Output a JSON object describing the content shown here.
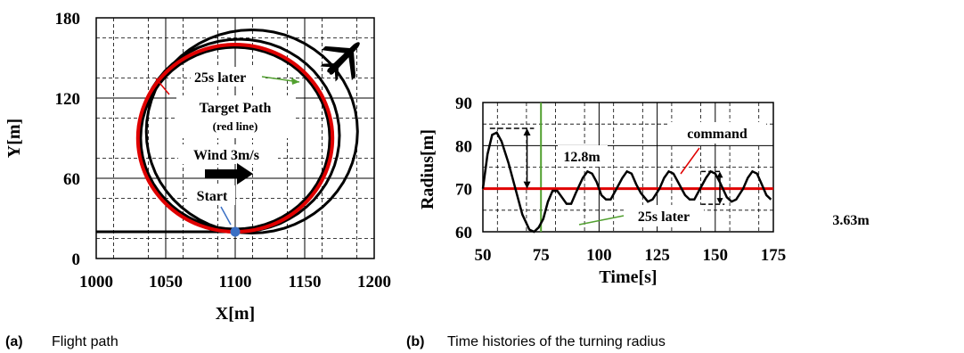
{
  "colors": {
    "target": "#e00000",
    "flight": "#000000",
    "marker": "#ff0000",
    "start_dot": "#3a6fc4",
    "annotation_line": "#52a030"
  },
  "captions": {
    "a_label": "(a)",
    "a_text": "Flight path",
    "b_label": "(b)",
    "b_text": "Time histories of the turning radius"
  },
  "chart_data": [
    {
      "type": "line",
      "xlabel": "X[m]",
      "ylabel": "Y[m]",
      "xlim": [
        1000,
        1200
      ],
      "ylim": [
        0,
        180
      ],
      "xticks": [
        "1000",
        "1050",
        "1100",
        "1150",
        "1200"
      ],
      "yticks": [
        "0",
        "60",
        "120",
        "180"
      ],
      "grid": true,
      "target_path": {
        "center": [
          1100,
          90
        ],
        "radius": 70
      },
      "flight_path": {
        "entry_from": [
          1000,
          20
        ],
        "start": [
          1100,
          20
        ],
        "loop_centers": [
          [
            1100,
            90
          ],
          [
            1103,
            92
          ],
          [
            1112,
            95
          ]
        ],
        "loop_radii": [
          68,
          72,
          76
        ]
      },
      "annotations": {
        "later": "25s later",
        "target": "Target Path",
        "target_sub": "(red line)",
        "wind": "Wind 3m/s",
        "start": "Start"
      },
      "icon": "airplane-icon"
    },
    {
      "type": "line",
      "xlabel": "Time[s]",
      "ylabel": "Radius[m]",
      "xlim": [
        50,
        175
      ],
      "ylim": [
        60,
        90
      ],
      "xticks": [
        "50",
        "75",
        "100",
        "125",
        "150",
        "175"
      ],
      "yticks": [
        "60",
        "70",
        "80",
        "90"
      ],
      "grid": true,
      "command": 70,
      "series_points": [
        [
          50,
          70
        ],
        [
          52,
          78
        ],
        [
          54,
          82.5
        ],
        [
          56,
          83
        ],
        [
          58,
          81
        ],
        [
          61,
          76
        ],
        [
          64,
          70
        ],
        [
          67,
          64
        ],
        [
          70,
          60.5
        ],
        [
          72,
          60
        ],
        [
          74,
          61
        ],
        [
          76,
          63
        ],
        [
          78,
          67
        ],
        [
          80,
          69.5
        ],
        [
          82,
          69.5
        ],
        [
          84,
          68
        ],
        [
          86,
          66.5
        ],
        [
          88,
          66.5
        ],
        [
          90,
          69
        ],
        [
          93,
          72.5
        ],
        [
          95,
          74
        ],
        [
          97,
          73.5
        ],
        [
          99,
          71.5
        ],
        [
          101,
          68.5
        ],
        [
          103,
          67.5
        ],
        [
          105,
          67.5
        ],
        [
          107,
          69.5
        ],
        [
          110,
          72.5
        ],
        [
          112,
          74
        ],
        [
          114,
          73.5
        ],
        [
          116,
          71
        ],
        [
          118,
          69
        ],
        [
          121,
          67
        ],
        [
          123,
          67.5
        ],
        [
          126,
          70
        ],
        [
          128,
          72.5
        ],
        [
          130,
          74
        ],
        [
          132,
          73.5
        ],
        [
          134,
          71.5
        ],
        [
          137,
          68.5
        ],
        [
          139,
          67.5
        ],
        [
          141,
          67.5
        ],
        [
          143,
          69.5
        ],
        [
          146,
          72.5
        ],
        [
          148,
          74
        ],
        [
          150,
          73.5
        ],
        [
          152,
          71.5
        ],
        [
          155,
          68
        ],
        [
          157,
          67
        ],
        [
          159,
          67.5
        ],
        [
          162,
          70
        ],
        [
          164,
          72.5
        ],
        [
          166,
          74
        ],
        [
          168,
          73.5
        ],
        [
          170,
          71
        ],
        [
          172,
          68.5
        ],
        [
          174,
          67.5
        ]
      ],
      "annotations": {
        "command": "command",
        "later": "25s later",
        "peak_amp": "12.8m",
        "osc_amp": "3.63m"
      },
      "later_time": 75,
      "peak_dash_level": 84,
      "osc_dash_levels": [
        74,
        66.4
      ]
    }
  ]
}
